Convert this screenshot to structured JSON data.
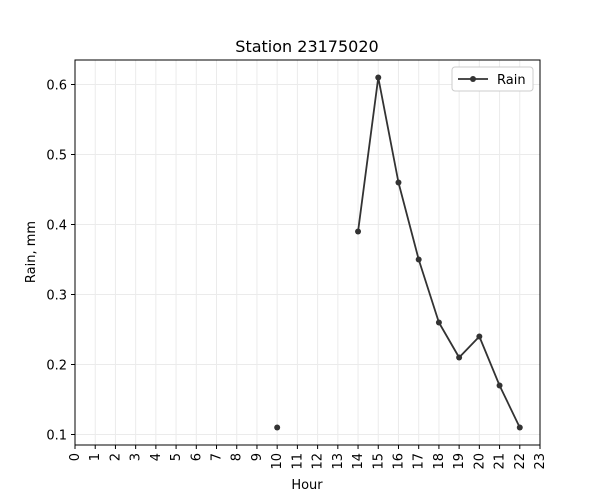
{
  "chart_data": {
    "type": "line",
    "title": "Station 23175020",
    "xlabel": "Hour",
    "ylabel": "Rain, mm",
    "xlim": [
      0,
      23
    ],
    "ylim": [
      0.085,
      0.635
    ],
    "x_ticks": [
      "0",
      "1",
      "2",
      "3",
      "4",
      "5",
      "6",
      "7",
      "8",
      "9",
      "10",
      "11",
      "12",
      "13",
      "14",
      "15",
      "16",
      "17",
      "18",
      "19",
      "20",
      "21",
      "22",
      "23"
    ],
    "y_ticks": [
      0.1,
      0.2,
      0.3,
      0.4,
      0.5,
      0.6
    ],
    "y_tick_labels": [
      "0.1",
      "0.2",
      "0.3",
      "0.4",
      "0.5",
      "0.6"
    ],
    "grid": true,
    "legend": "upper-right",
    "series": [
      {
        "name": "Rain",
        "color": "#333333",
        "points": [
          {
            "x": 10,
            "y": 0.11
          },
          {
            "x": 14,
            "y": 0.39
          },
          {
            "x": 15,
            "y": 0.61
          },
          {
            "x": 16,
            "y": 0.46
          },
          {
            "x": 17,
            "y": 0.35
          },
          {
            "x": 18,
            "y": 0.26
          },
          {
            "x": 19,
            "y": 0.21
          },
          {
            "x": 20,
            "y": 0.24
          },
          {
            "x": 21,
            "y": 0.17
          },
          {
            "x": 22,
            "y": 0.11
          }
        ]
      }
    ]
  }
}
